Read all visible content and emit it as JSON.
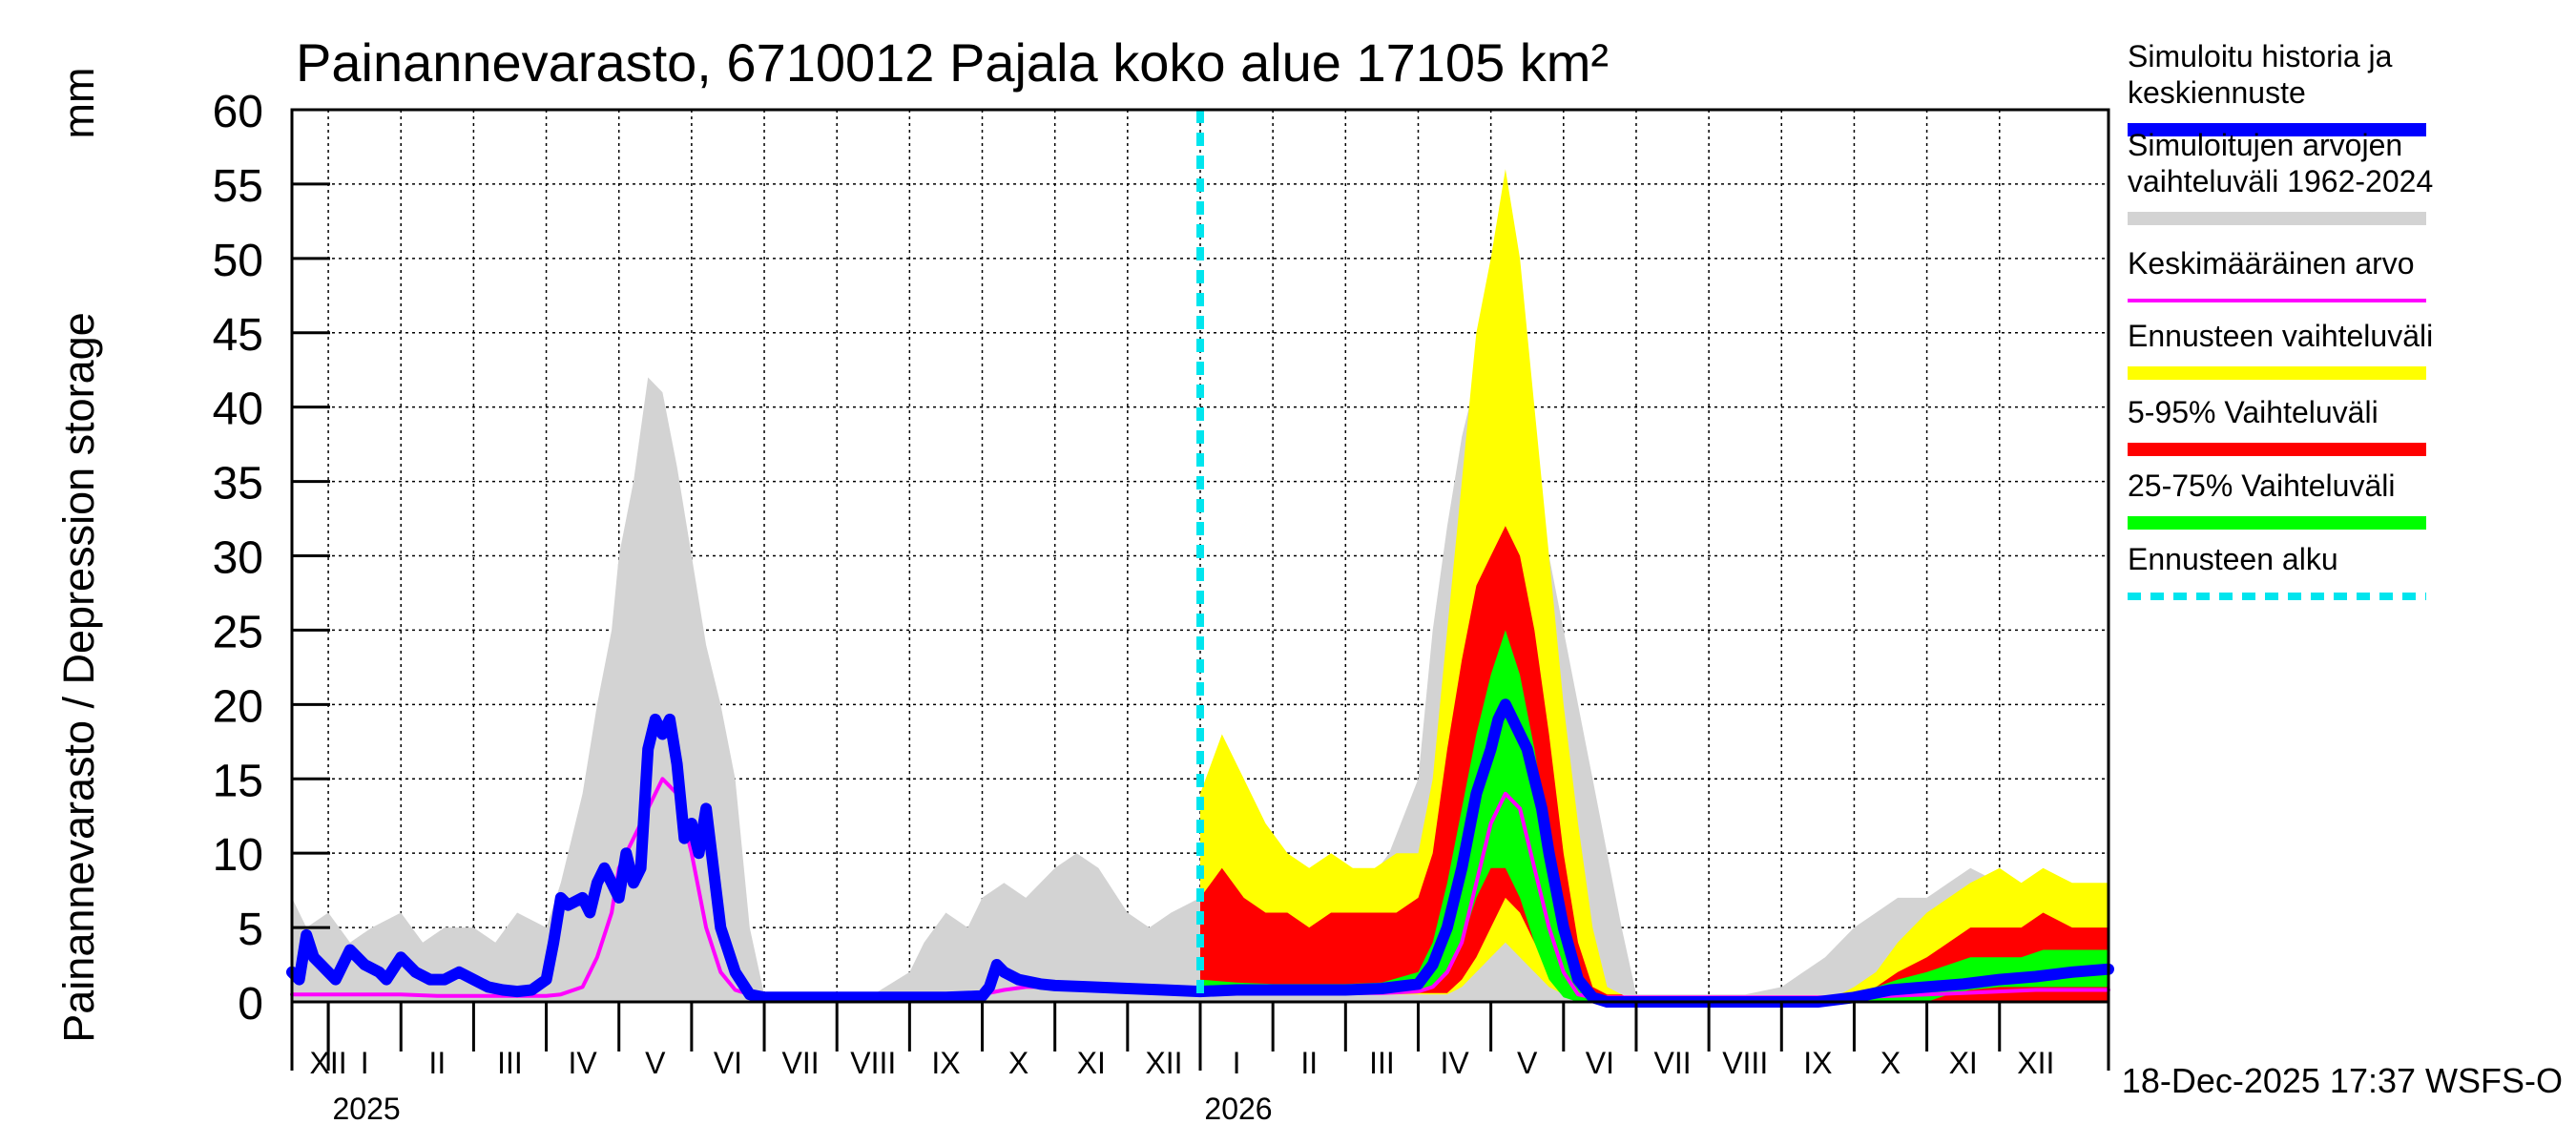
{
  "chart_data": {
    "type": "area",
    "title": "Painannevarasto, 6710012 Pajala koko alue 17105 km²",
    "ylabel": "Painannevarasto / Depression storage",
    "yunit": "mm",
    "ylim": [
      0,
      60
    ],
    "yticks": [
      0,
      5,
      10,
      15,
      20,
      25,
      30,
      35,
      40,
      45,
      50,
      55,
      60
    ],
    "xlim": [
      -0.5,
      24.5
    ],
    "x_unit": "months since 2025-01",
    "month_labels": [
      {
        "label": "XII",
        "x": -0.5
      },
      {
        "label": "I",
        "x": 0
      },
      {
        "label": "II",
        "x": 1
      },
      {
        "label": "III",
        "x": 2
      },
      {
        "label": "IV",
        "x": 3
      },
      {
        "label": "V",
        "x": 4
      },
      {
        "label": "VI",
        "x": 5
      },
      {
        "label": "VII",
        "x": 6
      },
      {
        "label": "VIII",
        "x": 7
      },
      {
        "label": "IX",
        "x": 8
      },
      {
        "label": "X",
        "x": 9
      },
      {
        "label": "XI",
        "x": 10
      },
      {
        "label": "XII",
        "x": 11
      },
      {
        "label": "I",
        "x": 12
      },
      {
        "label": "II",
        "x": 13
      },
      {
        "label": "III",
        "x": 14
      },
      {
        "label": "IV",
        "x": 15
      },
      {
        "label": "V",
        "x": 16
      },
      {
        "label": "VI",
        "x": 17
      },
      {
        "label": "VII",
        "x": 18
      },
      {
        "label": "VIII",
        "x": 19
      },
      {
        "label": "IX",
        "x": 20
      },
      {
        "label": "X",
        "x": 21
      },
      {
        "label": "XI",
        "x": 22
      },
      {
        "label": "XII",
        "x": 23
      }
    ],
    "year_labels": [
      {
        "label": "2025",
        "x": 0
      },
      {
        "label": "2026",
        "x": 12
      }
    ],
    "forecast_start_x": 12.0,
    "footer": "18-Dec-2025 17:37 WSFS-O",
    "legend": [
      {
        "label": "Simuloitu historia ja\nkeskiennuste",
        "color": "#0000ff",
        "style": "thick"
      },
      {
        "label": "Simuloitujen arvojen\nvaihteluväli 1962-2024",
        "color": "#d3d3d3",
        "style": "thick"
      },
      {
        "label": "Keskimääräinen arvo",
        "color": "#ff00ff",
        "style": "thin"
      },
      {
        "label": "Ennusteen vaihteluväli",
        "color": "#ffff00",
        "style": "thick"
      },
      {
        "label": "5-95% Vaihteluväli",
        "color": "#ff0000",
        "style": "thick"
      },
      {
        "label": "25-75% Vaihteluväli",
        "color": "#00ff00",
        "style": "thick"
      },
      {
        "label": "Ennusteen alku",
        "color": "#00e5ee",
        "style": "dashed"
      }
    ],
    "series": [
      {
        "name": "Simuloitujen arvojen vaihteluväli 1962-2024",
        "kind": "band",
        "color": "#d3d3d3",
        "x": [
          -0.5,
          -0.3,
          0,
          0.3,
          0.6,
          1,
          1.3,
          1.6,
          2,
          2.3,
          2.6,
          3,
          3.2,
          3.5,
          3.7,
          3.9,
          4.0,
          4.2,
          4.4,
          4.6,
          4.8,
          5.0,
          5.2,
          5.4,
          5.6,
          5.8,
          6.0,
          6.3,
          6.6,
          7,
          7.5,
          8,
          8.2,
          8.5,
          8.8,
          9.0,
          9.3,
          9.6,
          10,
          10.3,
          10.6,
          11,
          11.3,
          11.6,
          12,
          12.3,
          12.6,
          13,
          13.3,
          13.6,
          14,
          14.3,
          14.6,
          15,
          15.2,
          15.4,
          15.6,
          15.8,
          16.0,
          16.2,
          16.4,
          16.6,
          16.8,
          17.0,
          17.2,
          17.4,
          17.6,
          17.8,
          18.0,
          18.3,
          18.6,
          19,
          19.5,
          20,
          20.3,
          20.6,
          21,
          21.3,
          21.6,
          22,
          22.3,
          22.6,
          23,
          23.3,
          23.6,
          24,
          24.5
        ],
        "low": [
          0,
          0,
          0,
          0,
          0,
          0,
          0,
          0,
          0,
          0,
          0,
          0,
          0,
          0,
          0,
          0,
          0,
          0,
          0,
          0,
          0,
          0,
          0,
          0,
          0,
          0,
          0,
          0,
          0,
          0,
          0,
          0,
          0,
          0,
          0,
          0,
          0,
          0,
          0,
          0,
          0,
          0,
          0,
          0,
          0,
          0,
          0,
          0,
          0,
          0,
          0,
          0,
          0,
          0,
          0,
          0,
          0,
          0,
          0,
          0,
          0,
          0,
          0,
          0,
          0,
          0,
          0,
          0,
          0,
          0,
          0,
          0,
          0,
          0,
          0,
          0,
          0,
          0,
          0,
          0,
          0,
          0,
          0,
          0,
          0,
          0,
          0
        ],
        "high": [
          7,
          5,
          6,
          4,
          5,
          6,
          4,
          5,
          5,
          4,
          6,
          5,
          8,
          14,
          20,
          25,
          30,
          35,
          42,
          41,
          36,
          30,
          24,
          20,
          15,
          5,
          0.5,
          0.5,
          0.5,
          0.5,
          0.5,
          2,
          4,
          6,
          5,
          7,
          8,
          7,
          9,
          10,
          9,
          6,
          5,
          6,
          7,
          9,
          8,
          7,
          7,
          8,
          7,
          8,
          10,
          15,
          25,
          32,
          38,
          42,
          44,
          46,
          42,
          36,
          30,
          25,
          20,
          15,
          10,
          5,
          0.5,
          0.5,
          0.5,
          0.5,
          0.5,
          1,
          2,
          3,
          5,
          6,
          7,
          7,
          8,
          9,
          8,
          8,
          7,
          6,
          7
        ]
      },
      {
        "name": "Ennusteen vaihteluväli",
        "kind": "band",
        "color": "#ffff00",
        "x": [
          12.0,
          12.3,
          12.6,
          12.9,
          13.2,
          13.5,
          13.8,
          14.1,
          14.4,
          14.7,
          15.0,
          15.2,
          15.4,
          15.6,
          15.8,
          16.0,
          16.2,
          16.4,
          16.6,
          16.8,
          17.0,
          17.2,
          17.4,
          17.6,
          17.8,
          18.0,
          18.3,
          18.6,
          19,
          19.5,
          20,
          20.3,
          20.6,
          21,
          21.3,
          21.6,
          22,
          22.3,
          22.6,
          23,
          23.3,
          23.6,
          24,
          24.5
        ],
        "low": [
          1,
          1,
          0.5,
          0.5,
          0.5,
          0.5,
          0.5,
          0.5,
          0.5,
          0.5,
          0.5,
          0.5,
          0.5,
          1,
          2,
          3,
          4,
          3,
          2,
          1,
          0.5,
          0,
          0,
          0,
          0,
          0,
          0,
          0,
          0,
          0,
          0,
          0,
          0,
          0,
          0,
          0,
          0,
          0,
          0,
          0,
          0,
          0,
          0,
          0
        ],
        "high": [
          14,
          18,
          15,
          12,
          10,
          9,
          10,
          9,
          9,
          10,
          10,
          15,
          25,
          35,
          45,
          50,
          56,
          50,
          40,
          30,
          20,
          12,
          5,
          1,
          0.5,
          0,
          0,
          0,
          0,
          0,
          0,
          0,
          0,
          1,
          2,
          4,
          6,
          7,
          8,
          9,
          8,
          9,
          8,
          8
        ]
      },
      {
        "name": "5-95% Vaihteluväli",
        "kind": "band",
        "color": "#ff0000",
        "x": [
          12.0,
          12.3,
          12.6,
          12.9,
          13.2,
          13.5,
          13.8,
          14.1,
          14.4,
          14.7,
          15.0,
          15.2,
          15.4,
          15.6,
          15.8,
          16.0,
          16.2,
          16.4,
          16.6,
          16.8,
          17.0,
          17.2,
          17.4,
          17.6,
          17.8,
          18.0,
          18.3,
          18.6,
          19,
          19.5,
          20,
          20.3,
          20.6,
          21,
          21.3,
          21.6,
          22,
          22.3,
          22.6,
          23,
          23.3,
          23.6,
          24,
          24.5
        ],
        "low": [
          1,
          1,
          0.7,
          0.6,
          0.6,
          0.6,
          0.6,
          0.6,
          0.6,
          0.6,
          0.6,
          0.6,
          0.6,
          1.5,
          3,
          5,
          7,
          6,
          4,
          2,
          0.5,
          0,
          0,
          0,
          0,
          0,
          0,
          0,
          0,
          0,
          0,
          0,
          0,
          0,
          0,
          0,
          0,
          0,
          0,
          0,
          0,
          0,
          0,
          0
        ],
        "high": [
          7,
          9,
          7,
          6,
          6,
          5,
          6,
          6,
          6,
          6,
          7,
          10,
          17,
          23,
          28,
          30,
          32,
          30,
          25,
          18,
          10,
          4,
          1,
          0.5,
          0.5,
          0,
          0,
          0,
          0,
          0,
          0,
          0,
          0,
          0.5,
          1,
          2,
          3,
          4,
          5,
          5,
          5,
          6,
          5,
          5
        ]
      },
      {
        "name": "25-75% Vaihteluväli",
        "kind": "band",
        "color": "#00ff00",
        "x": [
          12.0,
          12.5,
          13,
          13.5,
          14,
          14.5,
          15.0,
          15.2,
          15.4,
          15.6,
          15.8,
          16.0,
          16.2,
          16.4,
          16.6,
          16.8,
          17.0,
          17.2,
          17.4,
          17.6,
          17.8,
          18.0,
          18.5,
          19,
          19.5,
          20,
          20.5,
          21,
          21.3,
          21.6,
          22,
          22.3,
          22.6,
          23,
          23.3,
          23.6,
          24,
          24.5
        ],
        "low": [
          0.8,
          0.7,
          0.6,
          0.6,
          0.6,
          0.6,
          0.7,
          1,
          2,
          4,
          7,
          9,
          9,
          7,
          4,
          1.5,
          0.3,
          0,
          0,
          0,
          0,
          0,
          0,
          0,
          0,
          0,
          0,
          0,
          0,
          0,
          0,
          0.5,
          0.8,
          1,
          1,
          1,
          1,
          1
        ],
        "high": [
          1.5,
          1.3,
          1.2,
          1.2,
          1.2,
          1.3,
          2,
          4,
          8,
          13,
          18,
          22,
          25,
          22,
          17,
          11,
          5,
          1.5,
          0.3,
          0,
          0,
          0,
          0,
          0,
          0,
          0,
          0,
          0.5,
          1,
          1.5,
          2,
          2.5,
          3,
          3,
          3,
          3.5,
          3.5,
          3.5
        ]
      },
      {
        "name": "Keskimääräinen arvo",
        "kind": "line",
        "color": "#ff00ff",
        "width": 4,
        "x": [
          -0.5,
          0,
          0.5,
          1,
          1.5,
          2,
          2.5,
          3,
          3.2,
          3.5,
          3.7,
          3.9,
          4.0,
          4.2,
          4.4,
          4.6,
          4.8,
          5.0,
          5.2,
          5.4,
          5.6,
          5.8,
          6.0,
          6.3,
          7,
          8,
          8.5,
          9,
          9.3,
          9.6,
          10,
          11,
          12,
          13,
          14,
          14.5,
          15,
          15.2,
          15.4,
          15.6,
          15.8,
          16.0,
          16.2,
          16.4,
          16.6,
          16.8,
          17.0,
          17.2,
          17.4,
          18,
          19,
          20,
          20.5,
          21,
          21.5,
          22,
          22.5,
          23,
          23.5,
          24,
          24.5
        ],
        "y": [
          0.5,
          0.5,
          0.5,
          0.5,
          0.4,
          0.4,
          0.4,
          0.4,
          0.5,
          1,
          3,
          6,
          9,
          11,
          13,
          15,
          14,
          10,
          5,
          2,
          0.8,
          0.5,
          0.4,
          0.3,
          0.3,
          0.3,
          0.4,
          0.5,
          0.8,
          1,
          1,
          0.8,
          0.7,
          0.6,
          0.6,
          0.6,
          0.7,
          1,
          2,
          4,
          8,
          12,
          14,
          13,
          9,
          5,
          2,
          0.5,
          0.3,
          0.3,
          0.3,
          0.3,
          0.3,
          0.3,
          0.4,
          0.5,
          0.6,
          0.7,
          0.8,
          0.8,
          0.8
        ]
      },
      {
        "name": "Simuloitu historia ja keskiennuste",
        "kind": "line",
        "color": "#0000ff",
        "width": 12,
        "x": [
          -0.5,
          -0.4,
          -0.3,
          -0.2,
          -0.1,
          0,
          0.1,
          0.3,
          0.5,
          0.7,
          0.8,
          1,
          1.2,
          1.4,
          1.6,
          1.8,
          2,
          2.2,
          2.4,
          2.6,
          2.8,
          3,
          3.1,
          3.2,
          3.3,
          3.5,
          3.6,
          3.7,
          3.8,
          3.9,
          4.0,
          4.1,
          4.2,
          4.3,
          4.4,
          4.5,
          4.6,
          4.7,
          4.8,
          4.9,
          5.0,
          5.1,
          5.2,
          5.3,
          5.4,
          5.6,
          5.8,
          6.0,
          6.5,
          7,
          7.5,
          8,
          8.5,
          9,
          9.1,
          9.2,
          9.3,
          9.5,
          9.8,
          10,
          10.5,
          11,
          11.5,
          12,
          12.5,
          13,
          13.5,
          14,
          14.5,
          15,
          15.2,
          15.4,
          15.6,
          15.8,
          16.0,
          16.1,
          16.2,
          16.3,
          16.4,
          16.5,
          16.6,
          16.7,
          16.8,
          17.0,
          17.2,
          17.4,
          17.6,
          18,
          19,
          20,
          20.5,
          21,
          21.5,
          22,
          22.5,
          23,
          23.5,
          24,
          24.5
        ],
        "y": [
          2,
          1.5,
          4.5,
          3,
          2.5,
          2,
          1.5,
          3.5,
          2.5,
          2,
          1.5,
          3,
          2,
          1.5,
          1.5,
          2,
          1.5,
          1,
          0.8,
          0.7,
          0.8,
          1.5,
          4,
          7,
          6.5,
          7,
          6,
          8,
          9,
          8,
          7,
          10,
          8,
          9,
          17,
          19,
          18,
          19,
          16,
          11,
          12,
          10,
          13,
          9,
          5,
          2,
          0.5,
          0.3,
          0.3,
          0.3,
          0.3,
          0.3,
          0.3,
          0.4,
          1,
          2.5,
          2,
          1.5,
          1.2,
          1.1,
          1,
          0.9,
          0.8,
          0.7,
          0.8,
          0.8,
          0.8,
          0.8,
          0.9,
          1.2,
          2.5,
          5,
          9,
          14,
          17,
          19,
          20,
          19,
          18,
          17,
          15,
          13,
          10,
          5,
          1.5,
          0.3,
          0,
          0,
          0,
          0,
          0,
          0.3,
          0.8,
          1,
          1.2,
          1.5,
          1.7,
          2,
          2.2
        ]
      }
    ]
  }
}
